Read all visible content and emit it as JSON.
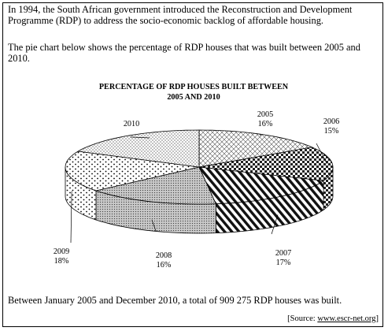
{
  "intro_text": "In 1994, the South African government introduced the Reconstruction and Development Programme (RDP) to address the socio-economic backlog of affordable housing.",
  "description_text": "The pie chart below shows the percentage of RDP houses that was built between 2005 and 2010.",
  "total_text": "Between January 2005 and December 2010, a total of 909 275 RDP houses was built.",
  "source": {
    "prefix": "[Source: ",
    "link": "www.escr-net.org",
    "suffix": "]"
  },
  "chart_data": {
    "type": "pie",
    "style": "3d",
    "title_line1": "PERCENTAGE OF RDP HOUSES BUILT BETWEEN",
    "title_line2": "2005 AND 2010",
    "slices": [
      {
        "label": "2005",
        "value": 16,
        "value_label": "16%",
        "pattern": "diagonal-cross-hatch"
      },
      {
        "label": "2006",
        "value": 15,
        "value_label": "15%",
        "pattern": "checkered"
      },
      {
        "label": "2007",
        "value": 17,
        "value_label": "17%",
        "pattern": "bold-diagonal-stripes"
      },
      {
        "label": "2008",
        "value": 16,
        "value_label": "16%",
        "pattern": "grey-dotted"
      },
      {
        "label": "2009",
        "value": 18,
        "value_label": "18%",
        "pattern": "sparse-dots"
      },
      {
        "label": "2010",
        "value": null,
        "value_label": "",
        "pattern": "fine-cross-hatch"
      }
    ]
  }
}
